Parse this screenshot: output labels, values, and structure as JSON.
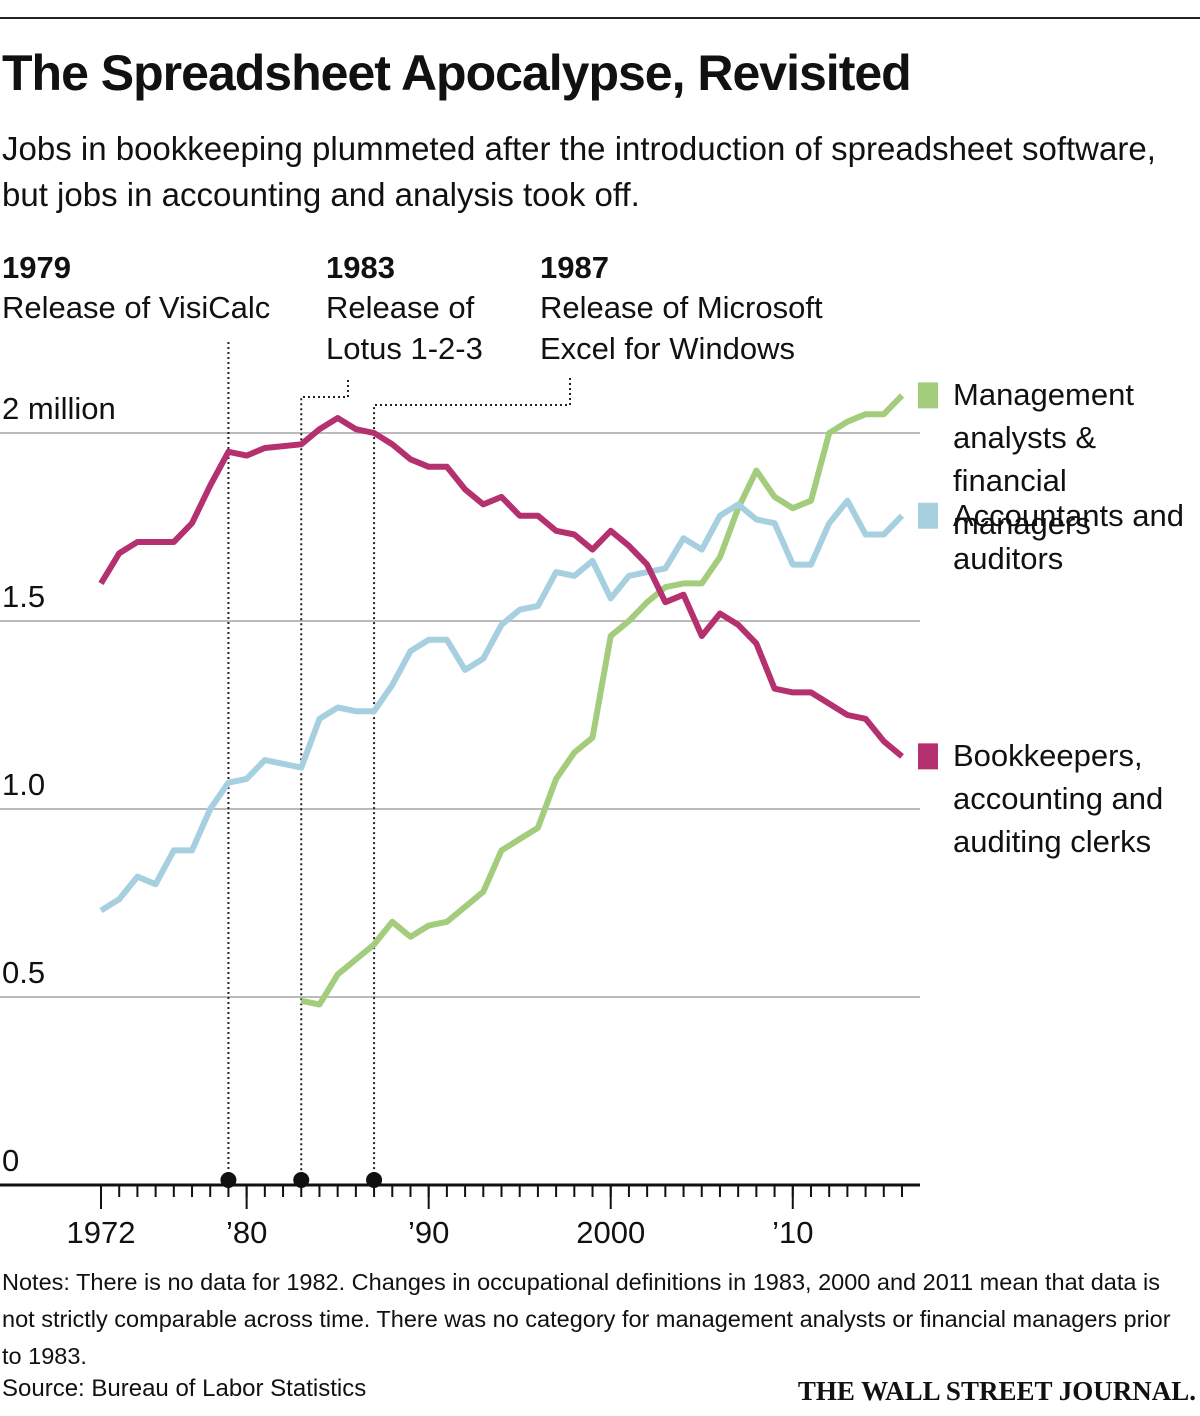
{
  "chart_data": {
    "type": "line",
    "title": "The Spreadsheet Apocalypse, Revisited",
    "subtitle": "Jobs in bookkeeping plummeted after the introduction of spreadsheet software, but jobs in accounting and analysis took off.",
    "notes": "Notes: There is no data for 1982. Changes in occupational definitions in 1983, 2000 and 2011 mean that data is not strictly comparable across time. There was no category for management analysts or financial managers prior to 1983.",
    "source": "Source: Bureau of Labor Statistics",
    "publisher": "THE WALL STREET JOURNAL.",
    "annotations": [
      {
        "year": 1979,
        "lines": [
          "Release of VisiCalc"
        ]
      },
      {
        "year": 1983,
        "lines": [
          "Release of",
          "Lotus 1-2-3"
        ]
      },
      {
        "year": 1987,
        "lines": [
          "Release of Microsoft",
          "Excel for Windows"
        ]
      }
    ],
    "x": [
      1972,
      1973,
      1974,
      1975,
      1976,
      1977,
      1978,
      1979,
      1980,
      1981,
      1983,
      1984,
      1985,
      1986,
      1987,
      1988,
      1989,
      1990,
      1991,
      1992,
      1993,
      1994,
      1995,
      1996,
      1997,
      1998,
      1999,
      2000,
      2001,
      2002,
      2003,
      2004,
      2005,
      2006,
      2007,
      2008,
      2009,
      2010,
      2011,
      2012,
      2013,
      2014,
      2015,
      2016
    ],
    "series": [
      {
        "name": "Management analysts & financial managers",
        "color": "#a3cc7c",
        "values": [
          null,
          null,
          null,
          null,
          null,
          null,
          null,
          null,
          null,
          null,
          0.49,
          0.48,
          0.56,
          0.6,
          0.64,
          0.7,
          0.66,
          0.69,
          0.7,
          0.74,
          0.78,
          0.89,
          0.92,
          0.95,
          1.08,
          1.15,
          1.19,
          1.46,
          1.5,
          1.55,
          1.59,
          1.6,
          1.6,
          1.67,
          1.8,
          1.9,
          1.83,
          1.8,
          1.82,
          2.0,
          2.03,
          2.05,
          2.05,
          2.1
        ]
      },
      {
        "name": "Accountants and auditors",
        "color": "#a6cfe0",
        "values": [
          0.73,
          0.76,
          0.82,
          0.8,
          0.89,
          0.89,
          1.0,
          1.07,
          1.08,
          1.13,
          1.11,
          1.24,
          1.27,
          1.26,
          1.26,
          1.33,
          1.42,
          1.45,
          1.45,
          1.37,
          1.4,
          1.49,
          1.53,
          1.54,
          1.63,
          1.62,
          1.66,
          1.56,
          1.62,
          1.63,
          1.64,
          1.72,
          1.69,
          1.78,
          1.81,
          1.77,
          1.76,
          1.65,
          1.65,
          1.76,
          1.82,
          1.73,
          1.73,
          1.78
        ]
      },
      {
        "name": "Bookkeepers, accounting and auditing clerks",
        "color": "#b5306e",
        "values": [
          1.6,
          1.68,
          1.71,
          1.71,
          1.71,
          1.76,
          1.86,
          1.95,
          1.94,
          1.96,
          1.97,
          2.01,
          2.04,
          2.01,
          2.0,
          1.97,
          1.93,
          1.91,
          1.91,
          1.85,
          1.81,
          1.83,
          1.78,
          1.78,
          1.74,
          1.73,
          1.69,
          1.74,
          1.7,
          1.65,
          1.55,
          1.57,
          1.46,
          1.52,
          1.49,
          1.44,
          1.32,
          1.31,
          1.31,
          1.28,
          1.25,
          1.24,
          1.18,
          1.14
        ]
      }
    ],
    "xlim": [
      1972,
      2016
    ],
    "xticks": [
      1972,
      {
        "value": 1980,
        "label": "’80"
      },
      {
        "value": 1990,
        "label": "’90"
      },
      2000,
      {
        "value": 2010,
        "label": "’10"
      }
    ],
    "ylim": [
      0,
      2.1
    ],
    "yticks": [
      0,
      0.5,
      {
        "value": 1,
        "label": "1.0"
      },
      1.5,
      {
        "value": 2,
        "label": "2 million"
      }
    ],
    "grid": true
  }
}
